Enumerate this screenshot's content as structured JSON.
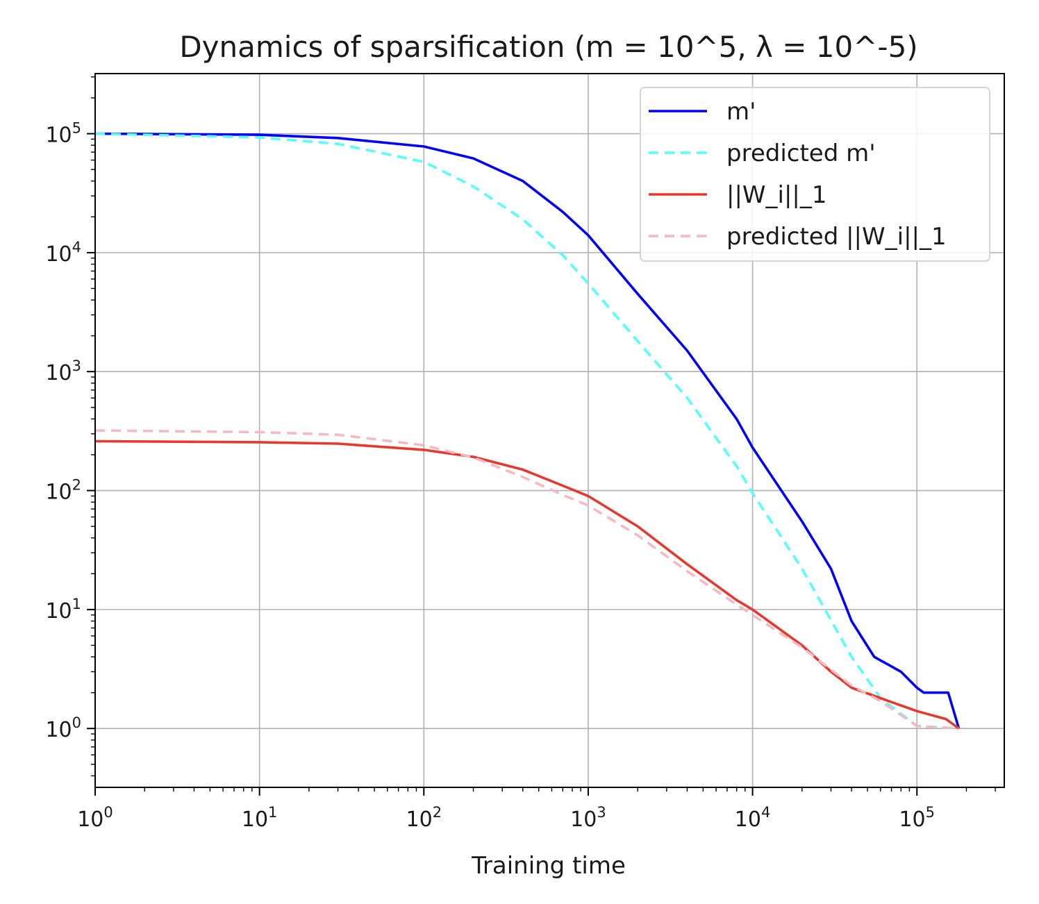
{
  "chart_data": {
    "type": "line",
    "title": "Dynamics of sparsification (m = 10^5, λ = 10^-5)",
    "xlabel": "Training time",
    "ylabel": "",
    "xscale": "log",
    "yscale": "log",
    "xlim": [
      1,
      340000
    ],
    "ylim": [
      0.32,
      320000
    ],
    "grid": true,
    "legend_position": "top-right",
    "x_ticks": [
      {
        "base": "10",
        "exp": "0",
        "value": 1
      },
      {
        "base": "10",
        "exp": "1",
        "value": 10
      },
      {
        "base": "10",
        "exp": "2",
        "value": 100
      },
      {
        "base": "10",
        "exp": "3",
        "value": 1000
      },
      {
        "base": "10",
        "exp": "4",
        "value": 10000
      },
      {
        "base": "10",
        "exp": "5",
        "value": 100000
      }
    ],
    "y_ticks": [
      {
        "base": "10",
        "exp": "0",
        "value": 1
      },
      {
        "base": "10",
        "exp": "1",
        "value": 10
      },
      {
        "base": "10",
        "exp": "2",
        "value": 100
      },
      {
        "base": "10",
        "exp": "3",
        "value": 1000
      },
      {
        "base": "10",
        "exp": "4",
        "value": 10000
      },
      {
        "base": "10",
        "exp": "5",
        "value": 100000
      }
    ],
    "series": [
      {
        "name": "m'",
        "color": "#0000ff",
        "style": "solid",
        "points": [
          [
            1,
            100000
          ],
          [
            10,
            98000
          ],
          [
            30,
            92000
          ],
          [
            100,
            78000
          ],
          [
            200,
            62000
          ],
          [
            400,
            40000
          ],
          [
            700,
            22000
          ],
          [
            1000,
            14000
          ],
          [
            2000,
            4500
          ],
          [
            4000,
            1500
          ],
          [
            8000,
            400
          ],
          [
            10000,
            230
          ],
          [
            20000,
            55
          ],
          [
            30000,
            22
          ],
          [
            40000,
            8
          ],
          [
            55000,
            4
          ],
          [
            80000,
            3
          ],
          [
            100000,
            2.2
          ],
          [
            110000,
            2
          ],
          [
            155000,
            2
          ],
          [
            180000,
            1
          ]
        ]
      },
      {
        "name": "predicted m'",
        "color": "#55ffff",
        "style": "dashed",
        "points": [
          [
            1,
            100000
          ],
          [
            10,
            93000
          ],
          [
            30,
            82000
          ],
          [
            100,
            58000
          ],
          [
            200,
            36000
          ],
          [
            400,
            19000
          ],
          [
            700,
            9500
          ],
          [
            1000,
            5500
          ],
          [
            2000,
            1800
          ],
          [
            4000,
            600
          ],
          [
            8000,
            160
          ],
          [
            10000,
            95
          ],
          [
            20000,
            22
          ],
          [
            40000,
            4
          ],
          [
            60000,
            1.8
          ],
          [
            100000,
            1.05
          ],
          [
            180000,
            1
          ]
        ]
      },
      {
        "name": "||W_i||_1",
        "color": "#e8372c",
        "style": "solid",
        "points": [
          [
            1,
            260
          ],
          [
            10,
            255
          ],
          [
            30,
            248
          ],
          [
            100,
            220
          ],
          [
            200,
            192
          ],
          [
            400,
            150
          ],
          [
            700,
            110
          ],
          [
            1000,
            90
          ],
          [
            2000,
            50
          ],
          [
            4000,
            24
          ],
          [
            8000,
            12
          ],
          [
            10000,
            10
          ],
          [
            20000,
            5
          ],
          [
            30000,
            3
          ],
          [
            40000,
            2.2
          ],
          [
            60000,
            1.8
          ],
          [
            100000,
            1.4
          ],
          [
            150000,
            1.2
          ],
          [
            180000,
            1
          ]
        ]
      },
      {
        "name": "predicted ||W_i||_1",
        "color": "#f5b9c0",
        "style": "dashed",
        "points": [
          [
            1,
            320
          ],
          [
            10,
            310
          ],
          [
            30,
            295
          ],
          [
            100,
            240
          ],
          [
            200,
            190
          ],
          [
            400,
            130
          ],
          [
            700,
            92
          ],
          [
            1000,
            75
          ],
          [
            2000,
            42
          ],
          [
            4000,
            21
          ],
          [
            8000,
            11
          ],
          [
            10000,
            9
          ],
          [
            20000,
            4.8
          ],
          [
            40000,
            2.3
          ],
          [
            60000,
            1.7
          ],
          [
            100000,
            1.05
          ],
          [
            180000,
            1
          ]
        ]
      }
    ]
  }
}
